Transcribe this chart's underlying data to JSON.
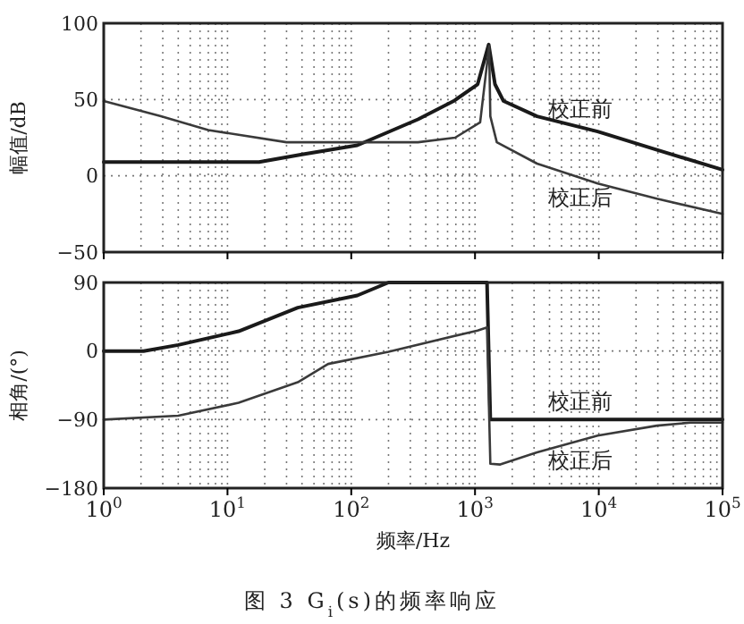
{
  "chart_data": [
    {
      "type": "line",
      "ylabel": "幅值/dB",
      "log": "x",
      "grid": true,
      "tick_labels": "y",
      "xlim": [
        1,
        100000
      ],
      "ylim": [
        -50,
        100
      ],
      "yticks": [
        -50,
        0,
        50,
        100
      ],
      "xticks": [
        {
          "value": 1,
          "label": null
        },
        {
          "value": 10,
          "label": null
        },
        {
          "value": 100,
          "label": null
        },
        {
          "value": 1000,
          "label": null
        },
        {
          "value": 10000,
          "label": null
        },
        {
          "value": 100000,
          "label": null
        }
      ],
      "series": [
        {
          "name": "校正前",
          "color": "#1a1a1a",
          "x": [
            1,
            18,
            40,
            112,
            346,
            672,
            1050,
            1290,
            1450,
            1700,
            3170,
            9800,
            29500,
            100000
          ],
          "values": [
            9,
            9,
            14,
            20,
            37,
            49,
            60,
            86,
            60,
            49,
            39,
            29,
            17,
            4
          ]
        },
        {
          "name": "校正后",
          "color": "#3a3a3a",
          "x": [
            1,
            2.9,
            7,
            30,
            346,
            690,
            1100,
            1300,
            1330,
            1500,
            3170,
            9800,
            29500,
            100000
          ],
          "values": [
            49,
            39,
            30,
            22,
            22,
            25,
            35,
            85,
            39,
            22,
            8,
            -5,
            -15,
            -25
          ]
        }
      ]
    },
    {
      "type": "line",
      "ylabel": "相角/(°)",
      "xlabel": "频率/Hz",
      "log": "x",
      "grid": true,
      "xlim": [
        1,
        100000
      ],
      "ylim": [
        -180,
        90
      ],
      "yticks": [
        -180,
        -90,
        0,
        90
      ],
      "xticks": [
        {
          "value": 1,
          "label": "10$^{0}$"
        },
        {
          "value": 10,
          "label": "10$^{1}$"
        },
        {
          "value": 100,
          "label": "10$^{2}$"
        },
        {
          "value": 1000,
          "label": "10$^{3}$"
        },
        {
          "value": 10000,
          "label": "10$^{4}$"
        },
        {
          "value": 100000,
          "label": "10$^{5}$"
        }
      ],
      "annotations": [
        "图 3  G$_{i}$(s)的频率响应"
      ],
      "series": [
        {
          "name": "校正前",
          "color": "#1a1a1a",
          "x": [
            1,
            2.1,
            4,
            12.3,
            37,
            112,
            200,
            1250,
            1330,
            100000
          ],
          "values": [
            0,
            0,
            8,
            26,
            57,
            73,
            90,
            90,
            -90,
            -90
          ]
        },
        {
          "name": "校正后",
          "color": "#3a3a3a",
          "x": [
            1,
            4,
            12.3,
            37,
            65,
            200,
            1050,
            1250,
            1330,
            1600,
            3170,
            9800,
            29500,
            55000,
            100000
          ],
          "values": [
            -90,
            -85,
            -68,
            -41,
            -17,
            -1,
            27,
            31,
            -148,
            -149,
            -133,
            -111,
            -98,
            -94,
            -94
          ]
        }
      ]
    }
  ]
}
